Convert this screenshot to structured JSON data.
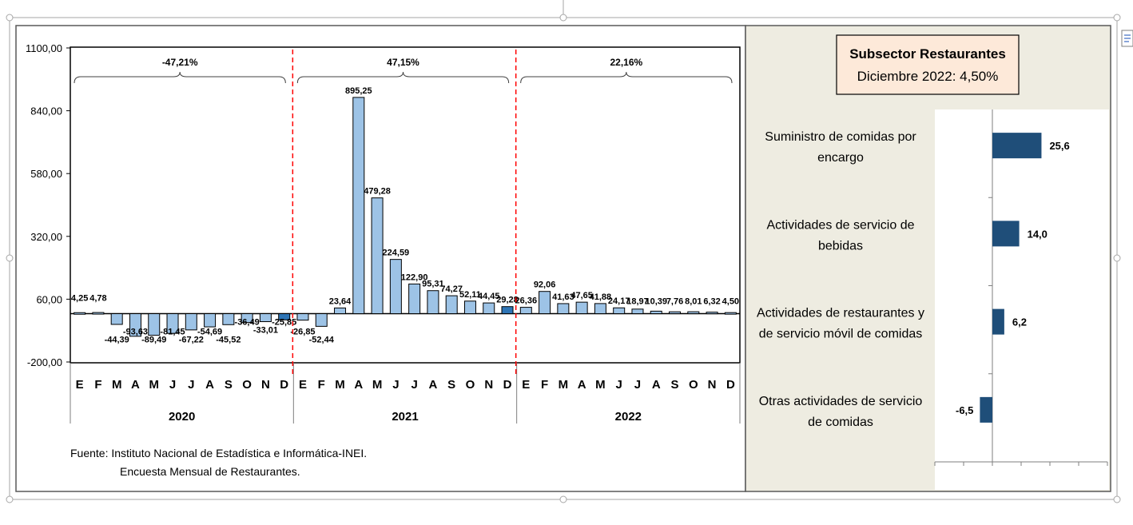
{
  "chart_data": [
    {
      "type": "bar",
      "title": "",
      "ylim": [
        -200,
        1100
      ],
      "yticks": [
        "1100,00",
        "840,00",
        "580,00",
        "320,00",
        "60,00",
        "-200,00"
      ],
      "ytick_values": [
        1100,
        840,
        580,
        320,
        60,
        -200
      ],
      "grid": false,
      "years": [
        {
          "label": "2020",
          "change": "-47,21%",
          "months": [
            "E",
            "F",
            "M",
            "A",
            "M",
            "J",
            "J",
            "A",
            "S",
            "O",
            "N",
            "D"
          ]
        },
        {
          "label": "2021",
          "change": "47,15%",
          "months": [
            "E",
            "F",
            "M",
            "A",
            "M",
            "J",
            "J",
            "A",
            "S",
            "O",
            "N",
            "D"
          ]
        },
        {
          "label": "2022",
          "change": "22,16%",
          "months": [
            "E",
            "F",
            "M",
            "A",
            "M",
            "J",
            "J",
            "A",
            "S",
            "O",
            "N",
            "D"
          ]
        }
      ],
      "values": [
        4.25,
        4.78,
        -44.39,
        -93.63,
        -89.49,
        -81.45,
        -67.22,
        -54.69,
        -45.52,
        -36.49,
        -33.01,
        -25.85,
        -26.85,
        -52.44,
        23.64,
        895.25,
        479.28,
        224.59,
        122.9,
        95.31,
        74.27,
        52.11,
        44.45,
        29.28,
        26.36,
        92.06,
        41.63,
        47.65,
        41.88,
        24.17,
        18.97,
        10.39,
        7.76,
        8.01,
        6.32,
        4.5
      ],
      "labels": [
        "4,25",
        "4,78",
        "-44,39",
        "-93,63",
        "-89,49",
        "-81,45",
        "-67,22",
        "-54,69",
        "-45,52",
        "-36,49",
        "-33,01",
        "-25,85",
        "-26,85",
        "-52,44",
        "23,64",
        "895,25",
        "479,28",
        "224,59",
        "122,90",
        "95,31",
        "74,27",
        "52,11",
        "44,45",
        "29,28",
        "26,36",
        "92,06",
        "41,63",
        "47,65",
        "41,88",
        "24,17",
        "18,97",
        "10,39",
        "7,76",
        "8,01",
        "6,32",
        "4,50"
      ],
      "colors": {
        "bar": "#9dc3e6",
        "highlight": "#2e75b6",
        "divider": "#ff0000"
      }
    },
    {
      "type": "bar",
      "orientation": "horizontal",
      "title": "Subsector Restaurantes",
      "subtitle": "Diciembre 2022: 4,50%",
      "categories": [
        [
          "Suministro de comidas por",
          "encargo"
        ],
        [
          "Actividades de servicio de",
          "bebidas"
        ],
        [
          "Actividades de restaurantes y",
          "de servicio móvil de comidas"
        ],
        [
          "Otras actividades de servicio",
          "de comidas"
        ]
      ],
      "values": [
        25.6,
        14.0,
        6.2,
        -6.5
      ],
      "labels": [
        "25,6",
        "14,0",
        "6,2",
        "-6,5"
      ],
      "xlim": [
        -30,
        60
      ],
      "colors": {
        "bar": "#1f4e79",
        "panel": "#eeece1"
      }
    }
  ],
  "source": {
    "line1": "Fuente: Instituto Nacional de Estadística e Informática-INEI.",
    "line2": "Encuesta Mensual de  Restaurantes."
  }
}
